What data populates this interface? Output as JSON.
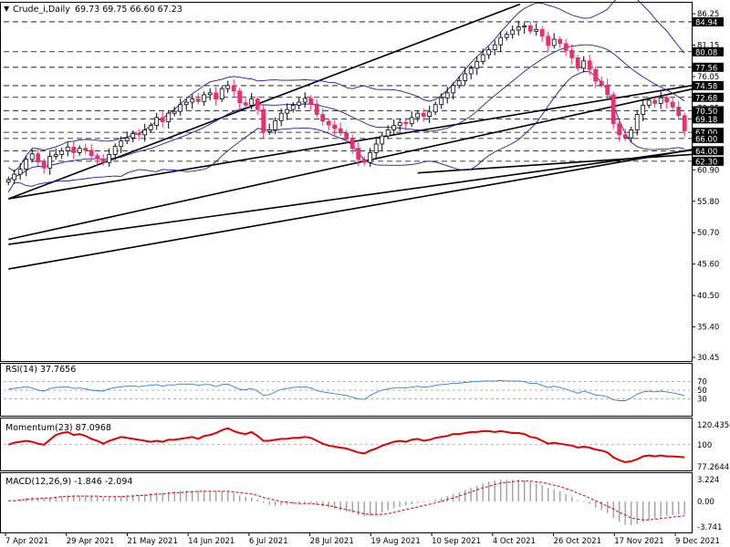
{
  "header": {
    "symbol": "Crude_i,Daily",
    "ohlc": "69.73 69.75 66.60 67.23"
  },
  "colors": {
    "bull": "#000000",
    "bear": "#e8306a",
    "bands": "#1a1aa8",
    "rsi": "#2f7ed8",
    "momentum": "#e00000",
    "macd_hist": "#a0a0a0",
    "macd_signal": "#d40000",
    "trend": "#000000",
    "price_box": "#000000"
  },
  "chart_data": [
    {
      "type": "candlestick",
      "panel": "price",
      "y_ticks": [
        "86.25",
        "81.15",
        "76.05",
        "70.95",
        "65.85",
        "60.90",
        "55.80",
        "50.70",
        "45.60",
        "40.50",
        "35.40",
        "30.45"
      ],
      "y_range": [
        30.45,
        87.3
      ],
      "level_labels": [
        "84.94",
        "80.08",
        "77.56",
        "74.58",
        "72.68",
        "70.50",
        "69.18",
        "67.00",
        "66.00",
        "64.00",
        "62.30"
      ],
      "closes": [
        59.3,
        60.2,
        61.0,
        62.6,
        63.5,
        62.2,
        61.2,
        63.1,
        63.4,
        64.0,
        64.6,
        63.7,
        64.4,
        64.1,
        63.2,
        62.7,
        62.1,
        63.4,
        64.7,
        65.6,
        66.1,
        66.8,
        66.6,
        67.4,
        68.1,
        69.4,
        68.7,
        70.1,
        70.4,
        71.5,
        71.9,
        72.4,
        72.0,
        73.1,
        73.4,
        72.4,
        74.1,
        74.6,
        73.7,
        71.8,
        71.4,
        72.4,
        70.7,
        67.1,
        67.4,
        68.9,
        70.1,
        70.7,
        71.4,
        71.9,
        72.5,
        71.6,
        69.9,
        68.8,
        68.2,
        67.6,
        66.9,
        65.9,
        64.4,
        62.6,
        62.1,
        63.7,
        65.1,
        66.4,
        67.4,
        68.1,
        68.6,
        68.4,
        69.4,
        70.1,
        69.6,
        70.3,
        71.5,
        72.6,
        73.4,
        74.6,
        75.4,
        76.5,
        77.4,
        78.5,
        79.6,
        80.4,
        81.2,
        82.4,
        82.9,
        83.6,
        84.1,
        84.3,
        83.4,
        83.7,
        82.6,
        81.1,
        82.1,
        81.4,
        80.3,
        79.1,
        77.4,
        78.6,
        77.2,
        75.3,
        74.7,
        73.1,
        68.4,
        66.6,
        66.1,
        67.4,
        69.9,
        71.4,
        72.2,
        71.7,
        72.6,
        71.9,
        71.1,
        69.7,
        67.23
      ],
      "x_labels": [
        "7 Apr 2021",
        "29 Apr 2021",
        "21 May 2021",
        "14 Jun 2021",
        "6 Jul 2021",
        "28 Jul 2021",
        "19 Aug 2021",
        "10 Sep 2021",
        "4 Oct 2021",
        "26 Oct 2021",
        "17 Nov 2021",
        "9 Dec 2021"
      ]
    },
    {
      "type": "line",
      "panel": "rsi",
      "title": "RSI(14) 37.7656",
      "y_ticks": [
        "70",
        "50",
        "30"
      ],
      "y_range": [
        0,
        100
      ],
      "values": [
        52,
        54,
        56,
        58,
        55,
        50,
        48,
        54,
        56,
        57,
        58,
        54,
        55,
        53,
        50,
        49,
        48,
        53,
        56,
        58,
        59,
        60,
        58,
        60,
        61,
        63,
        59,
        62,
        62,
        64,
        64,
        64,
        61,
        63,
        63,
        58,
        63,
        64,
        58,
        52,
        51,
        54,
        48,
        38,
        40,
        46,
        52,
        54,
        56,
        57,
        58,
        55,
        49,
        46,
        44,
        42,
        40,
        38,
        34,
        30,
        29,
        38,
        45,
        50,
        53,
        55,
        56,
        55,
        57,
        59,
        57,
        58,
        61,
        63,
        64,
        66,
        66,
        68,
        69,
        70,
        71,
        71,
        71,
        72,
        71,
        71,
        71,
        70,
        65,
        66,
        61,
        56,
        59,
        56,
        52,
        48,
        43,
        48,
        44,
        39,
        38,
        35,
        28,
        26,
        26,
        32,
        41,
        46,
        48,
        46,
        48,
        46,
        44,
        41,
        37.77
      ]
    },
    {
      "type": "line",
      "panel": "momentum",
      "title": "Momentum(23) 87.0968",
      "y_ticks": [
        "120.4358",
        "100",
        "77.2644"
      ],
      "y_range": [
        77.2644,
        120.4358
      ],
      "values": [
        100,
        102,
        103,
        104,
        103,
        101,
        100,
        105,
        110,
        112,
        113,
        110,
        111,
        109,
        106,
        104,
        101,
        104,
        106,
        108,
        107,
        106,
        105,
        104,
        103,
        104,
        103,
        105,
        105,
        106,
        107,
        108,
        106,
        109,
        110,
        112,
        115,
        117,
        114,
        112,
        111,
        113,
        109,
        104,
        104,
        105,
        106,
        106,
        107,
        107,
        108,
        107,
        104,
        101,
        99,
        98,
        97,
        96,
        94,
        92,
        91,
        94,
        96,
        99,
        101,
        103,
        104,
        103,
        105,
        106,
        104,
        105,
        107,
        108,
        109,
        111,
        111,
        112,
        113,
        113,
        114,
        114,
        113,
        114,
        113,
        112,
        112,
        111,
        108,
        107,
        104,
        101,
        102,
        101,
        100,
        99,
        97,
        98,
        97,
        95,
        94,
        92,
        87,
        84,
        82,
        83,
        85,
        88,
        89,
        88,
        89,
        88,
        88,
        87.5,
        87.1
      ]
    },
    {
      "type": "bar",
      "panel": "macd",
      "title": "MACD(12,26,9) -1.846 -2.094",
      "y_ticks": [
        "3.224",
        "0.00",
        "-3.741"
      ],
      "y_range": [
        -3.741,
        3.224
      ],
      "histogram": [
        0.1,
        0.2,
        0.3,
        0.5,
        0.6,
        0.6,
        0.5,
        0.6,
        0.7,
        0.8,
        0.9,
        0.9,
        0.9,
        0.9,
        0.8,
        0.7,
        0.6,
        0.6,
        0.7,
        0.8,
        0.9,
        1.0,
        1.0,
        1.1,
        1.2,
        1.3,
        1.3,
        1.4,
        1.5,
        1.6,
        1.6,
        1.6,
        1.6,
        1.6,
        1.5,
        1.5,
        1.5,
        1.4,
        1.2,
        0.9,
        0.7,
        0.6,
        0.3,
        -0.2,
        -0.5,
        -0.6,
        -0.6,
        -0.5,
        -0.4,
        -0.3,
        -0.2,
        -0.3,
        -0.5,
        -0.7,
        -0.9,
        -1.1,
        -1.3,
        -1.5,
        -1.7,
        -2.0,
        -2.2,
        -2.1,
        -1.9,
        -1.6,
        -1.3,
        -1.0,
        -0.8,
        -0.6,
        -0.4,
        -0.2,
        -0.1,
        0.1,
        0.3,
        0.5,
        0.8,
        1.1,
        1.4,
        1.7,
        2.0,
        2.3,
        2.6,
        2.9,
        3.1,
        3.2,
        3.2,
        3.2,
        3.2,
        3.1,
        2.9,
        2.7,
        2.4,
        2.0,
        1.8,
        1.5,
        1.1,
        0.7,
        0.2,
        -0.1,
        -0.4,
        -0.9,
        -1.3,
        -1.7,
        -2.4,
        -3.0,
        -3.4,
        -3.5,
        -3.3,
        -3.0,
        -2.7,
        -2.5,
        -2.3,
        -2.1,
        -2.0,
        -1.9,
        -1.846
      ],
      "signal": [
        0.1,
        0.1,
        0.2,
        0.3,
        0.4,
        0.4,
        0.5,
        0.5,
        0.6,
        0.7,
        0.7,
        0.8,
        0.8,
        0.8,
        0.8,
        0.8,
        0.7,
        0.7,
        0.7,
        0.7,
        0.8,
        0.8,
        0.9,
        0.9,
        1.0,
        1.1,
        1.1,
        1.2,
        1.3,
        1.3,
        1.4,
        1.4,
        1.5,
        1.5,
        1.5,
        1.5,
        1.5,
        1.5,
        1.4,
        1.3,
        1.2,
        1.1,
        0.9,
        0.6,
        0.4,
        0.2,
        0.0,
        -0.1,
        -0.2,
        -0.3,
        -0.3,
        -0.3,
        -0.4,
        -0.5,
        -0.6,
        -0.8,
        -1.0,
        -1.2,
        -1.4,
        -1.6,
        -1.8,
        -1.9,
        -1.9,
        -1.9,
        -1.8,
        -1.6,
        -1.4,
        -1.2,
        -1.0,
        -0.8,
        -0.6,
        -0.4,
        -0.2,
        0.0,
        0.3,
        0.5,
        0.8,
        1.1,
        1.4,
        1.7,
        2.0,
        2.2,
        2.5,
        2.7,
        2.8,
        2.9,
        3.0,
        3.0,
        3.0,
        2.9,
        2.8,
        2.6,
        2.4,
        2.2,
        1.9,
        1.6,
        1.2,
        0.9,
        0.5,
        0.1,
        -0.3,
        -0.7,
        -1.1,
        -1.6,
        -2.0,
        -2.4,
        -2.6,
        -2.7,
        -2.7,
        -2.6,
        -2.5,
        -2.4,
        -2.3,
        -2.2,
        -2.094
      ]
    }
  ]
}
